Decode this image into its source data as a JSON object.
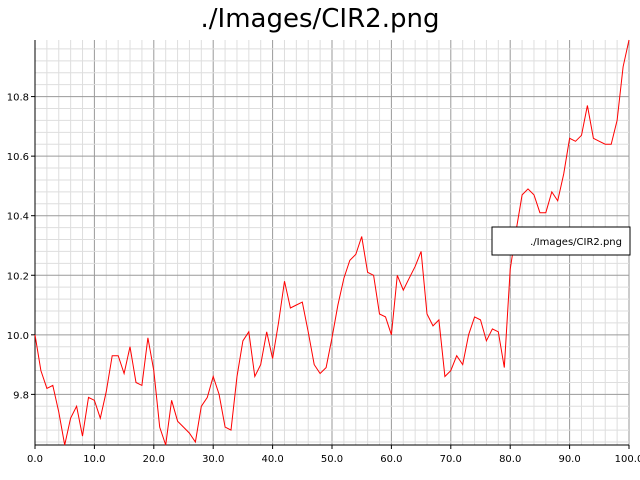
{
  "chart_data": {
    "type": "line",
    "title": "./Images/CIR2.png",
    "xlabel": "",
    "ylabel": "",
    "xlim": [
      0,
      100
    ],
    "ylim": [
      9.63,
      10.99
    ],
    "x_ticks": [
      "0.0",
      "10.0",
      "20.0",
      "30.0",
      "40.0",
      "50.0",
      "60.0",
      "70.0",
      "80.0",
      "90.0",
      "100.0"
    ],
    "y_ticks": [
      "9.8",
      "10.0",
      "10.2",
      "10.4",
      "10.6",
      "10.8"
    ],
    "grid": true,
    "legend": {
      "position": "right",
      "entries": [
        "./Images/CIR2.png"
      ]
    },
    "series": [
      {
        "name": "./Images/CIR2.png",
        "color": "#ff0000",
        "x": [
          0,
          1,
          2,
          3,
          4,
          5,
          6,
          7,
          8,
          9,
          10,
          11,
          12,
          13,
          14,
          15,
          16,
          17,
          18,
          19,
          20,
          21,
          22,
          23,
          24,
          25,
          26,
          27,
          28,
          29,
          30,
          31,
          32,
          33,
          34,
          35,
          36,
          37,
          38,
          39,
          40,
          41,
          42,
          43,
          44,
          45,
          46,
          47,
          48,
          49,
          50,
          51,
          52,
          53,
          54,
          55,
          56,
          57,
          58,
          59,
          60,
          61,
          62,
          63,
          64,
          65,
          66,
          67,
          68,
          69,
          70,
          71,
          72,
          73,
          74,
          75,
          76,
          77,
          78,
          79,
          80,
          81,
          82,
          83,
          84,
          85,
          86,
          87,
          88,
          89,
          90,
          91,
          92,
          93,
          94,
          95,
          96,
          97,
          98,
          99,
          100
        ],
        "values": [
          10.0,
          9.88,
          9.82,
          9.83,
          9.74,
          9.63,
          9.72,
          9.76,
          9.66,
          9.79,
          9.78,
          9.72,
          9.81,
          9.93,
          9.93,
          9.87,
          9.96,
          9.84,
          9.83,
          9.99,
          9.88,
          9.69,
          9.63,
          9.78,
          9.71,
          9.69,
          9.67,
          9.64,
          9.76,
          9.79,
          9.86,
          9.8,
          9.69,
          9.68,
          9.86,
          9.98,
          10.01,
          9.86,
          9.9,
          10.01,
          9.92,
          10.04,
          10.18,
          10.09,
          10.1,
          10.11,
          10.01,
          9.9,
          9.87,
          9.89,
          9.99,
          10.1,
          10.19,
          10.25,
          10.27,
          10.33,
          10.21,
          10.2,
          10.07,
          10.06,
          10.0,
          10.2,
          10.15,
          10.19,
          10.23,
          10.28,
          10.07,
          10.03,
          10.05,
          9.86,
          9.88,
          9.93,
          9.9,
          10.0,
          10.06,
          10.05,
          9.98,
          10.02,
          10.01,
          9.89,
          10.22,
          10.35,
          10.47,
          10.49,
          10.47,
          10.41,
          10.41,
          10.48,
          10.45,
          10.54,
          10.66,
          10.65,
          10.67,
          10.77,
          10.66,
          10.65,
          10.64,
          10.64,
          10.72,
          10.9,
          10.99
        ]
      }
    ]
  }
}
